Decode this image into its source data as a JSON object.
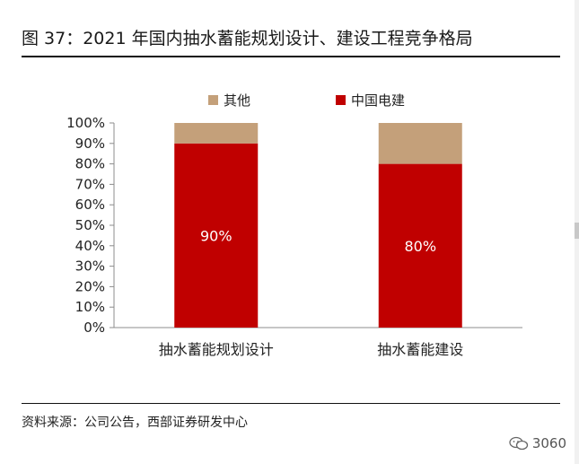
{
  "figure": {
    "title": "图 37：2021 年国内抽水蓄能规划设计、建设工程竞争格局",
    "source": "资料来源：公司公告，西部证券研发中心"
  },
  "watermark": {
    "label": "3060",
    "icon": "wechat-icon"
  },
  "chart_data": {
    "type": "bar",
    "stacked": true,
    "categories": [
      "抽水蓄能规划设计",
      "抽水蓄能建设"
    ],
    "series": [
      {
        "name": "中国电建",
        "values": [
          90,
          80
        ],
        "color": "#c00000",
        "data_labels": [
          "90%",
          "80%"
        ]
      },
      {
        "name": "其他",
        "values": [
          10,
          20
        ],
        "color": "#c4a07a"
      }
    ],
    "ylim": [
      0,
      100
    ],
    "yticks": [
      "0%",
      "10%",
      "20%",
      "30%",
      "40%",
      "50%",
      "60%",
      "70%",
      "80%",
      "90%",
      "100%"
    ],
    "legend_position": "top",
    "grid": false
  }
}
